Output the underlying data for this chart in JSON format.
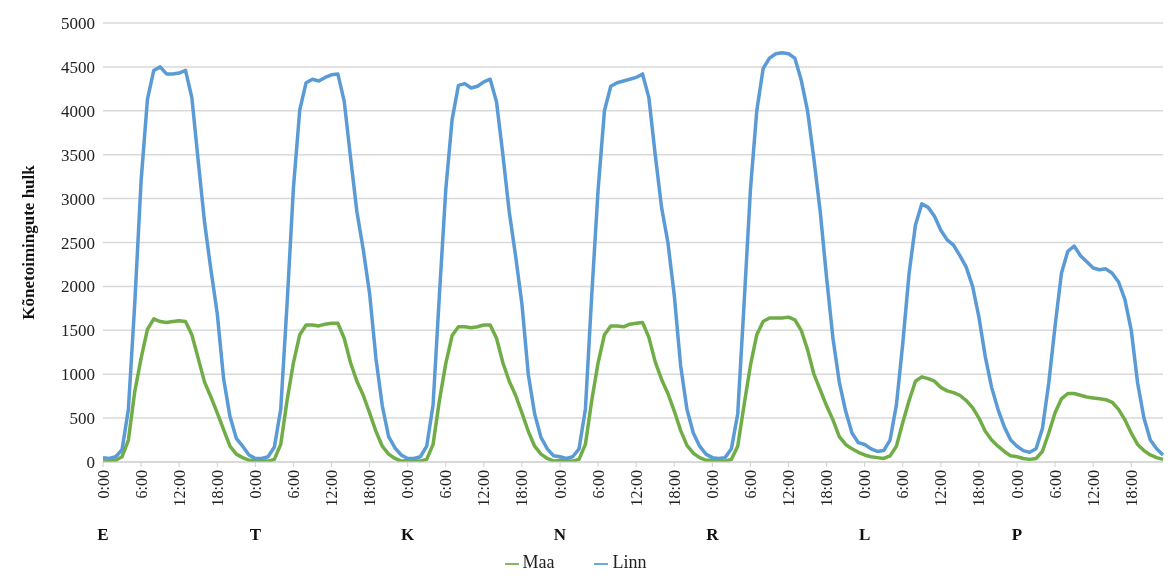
{
  "chart_data": {
    "type": "line",
    "ylabel": "Kõnetoimingute hulk",
    "categories": [
      "0:00",
      null,
      null,
      null,
      null,
      null,
      "6:00",
      null,
      null,
      null,
      null,
      null,
      "12:00",
      null,
      null,
      null,
      null,
      null,
      "18:00",
      null,
      null,
      null,
      null,
      null,
      "0:00",
      null,
      null,
      null,
      null,
      null,
      "6:00",
      null,
      null,
      null,
      null,
      null,
      "12:00",
      null,
      null,
      null,
      null,
      null,
      "18:00",
      null,
      null,
      null,
      null,
      null,
      "0:00",
      null,
      null,
      null,
      null,
      null,
      "6:00",
      null,
      null,
      null,
      null,
      null,
      "12:00",
      null,
      null,
      null,
      null,
      null,
      "18:00",
      null,
      null,
      null,
      null,
      null,
      "0:00",
      null,
      null,
      null,
      null,
      null,
      "6:00",
      null,
      null,
      null,
      null,
      null,
      "12:00",
      null,
      null,
      null,
      null,
      null,
      "18:00",
      null,
      null,
      null,
      null,
      null,
      "0:00",
      null,
      null,
      null,
      null,
      null,
      "6:00",
      null,
      null,
      null,
      null,
      null,
      "12:00",
      null,
      null,
      null,
      null,
      null,
      "18:00",
      null,
      null,
      null,
      null,
      null,
      "0:00",
      null,
      null,
      null,
      null,
      null,
      "6:00",
      null,
      null,
      null,
      null,
      null,
      "12:00",
      null,
      null,
      null,
      null,
      null,
      "18:00",
      null,
      null,
      null,
      null,
      null,
      "0:00",
      null,
      null,
      null,
      null,
      null,
      "6:00",
      null,
      null,
      null,
      null,
      null,
      "12:00",
      null,
      null,
      null,
      null,
      null,
      "18:00",
      null,
      null,
      null,
      null,
      null
    ],
    "series": [
      {
        "name": "Maa",
        "color": "#70ad47",
        "values": [
          10,
          10,
          20,
          60,
          250,
          800,
          1180,
          1510,
          1630,
          1600,
          1590,
          1600,
          1610,
          1600,
          1450,
          1180,
          910,
          740,
          560,
          370,
          180,
          90,
          50,
          20,
          20,
          10,
          10,
          30,
          200,
          700,
          1130,
          1450,
          1560,
          1560,
          1550,
          1570,
          1580,
          1580,
          1410,
          1130,
          920,
          760,
          560,
          350,
          180,
          90,
          40,
          10,
          20,
          10,
          10,
          30,
          200,
          700,
          1120,
          1440,
          1540,
          1540,
          1530,
          1540,
          1560,
          1560,
          1410,
          1130,
          920,
          760,
          560,
          350,
          180,
          90,
          40,
          10,
          20,
          10,
          10,
          30,
          200,
          700,
          1130,
          1450,
          1550,
          1550,
          1540,
          1570,
          1580,
          1590,
          1420,
          1140,
          940,
          780,
          580,
          360,
          190,
          100,
          50,
          20,
          20,
          10,
          10,
          30,
          180,
          650,
          1100,
          1450,
          1600,
          1640,
          1640,
          1640,
          1650,
          1620,
          1500,
          1280,
          1000,
          820,
          640,
          480,
          290,
          200,
          150,
          110,
          80,
          60,
          50,
          40,
          70,
          180,
          450,
          700,
          920,
          970,
          950,
          920,
          850,
          810,
          790,
          760,
          700,
          620,
          500,
          350,
          250,
          180,
          120,
          70,
          60,
          40,
          30,
          40,
          120,
          330,
          560,
          720,
          780,
          780,
          760,
          740,
          730,
          720,
          710,
          680,
          600,
          480,
          330,
          200,
          130,
          80,
          50,
          30
        ]
      },
      {
        "name": "Linn",
        "color": "#5b9bd5",
        "values": [
          50,
          40,
          60,
          140,
          600,
          1800,
          3200,
          4130,
          4460,
          4500,
          4420,
          4420,
          4430,
          4460,
          4150,
          3430,
          2730,
          2190,
          1690,
          950,
          520,
          270,
          180,
          80,
          40,
          40,
          60,
          170,
          600,
          1800,
          3120,
          4010,
          4320,
          4360,
          4340,
          4380,
          4410,
          4420,
          4110,
          3470,
          2850,
          2420,
          1920,
          1180,
          640,
          290,
          160,
          80,
          40,
          40,
          60,
          180,
          650,
          1900,
          3100,
          3900,
          4290,
          4310,
          4260,
          4280,
          4330,
          4360,
          4100,
          3500,
          2850,
          2350,
          1800,
          1000,
          550,
          280,
          150,
          70,
          60,
          40,
          60,
          150,
          600,
          1900,
          3100,
          4000,
          4280,
          4320,
          4340,
          4360,
          4380,
          4420,
          4150,
          3500,
          2900,
          2500,
          1900,
          1100,
          600,
          330,
          180,
          90,
          50,
          40,
          50,
          150,
          550,
          1800,
          3100,
          4000,
          4480,
          4600,
          4650,
          4660,
          4650,
          4600,
          4350,
          4000,
          3450,
          2850,
          2100,
          1410,
          910,
          580,
          330,
          220,
          200,
          150,
          120,
          130,
          250,
          650,
          1350,
          2150,
          2700,
          2940,
          2900,
          2800,
          2640,
          2530,
          2470,
          2350,
          2220,
          2000,
          1650,
          1200,
          850,
          600,
          400,
          250,
          180,
          130,
          110,
          150,
          380,
          900,
          1550,
          2150,
          2400,
          2460,
          2350,
          2280,
          2210,
          2190,
          2200,
          2150,
          2050,
          1850,
          1500,
          900,
          500,
          250,
          150,
          80
        ]
      }
    ],
    "ylim": [
      0,
      5000
    ],
    "yticks": [
      0,
      500,
      1000,
      1500,
      2000,
      2500,
      3000,
      3500,
      4000,
      4500,
      5000
    ],
    "grid": "y",
    "legend": "bottom",
    "marker": "none",
    "line_style": "solid",
    "annotations": [
      "E",
      "T",
      "K",
      "N",
      "R",
      "L",
      "P"
    ]
  }
}
